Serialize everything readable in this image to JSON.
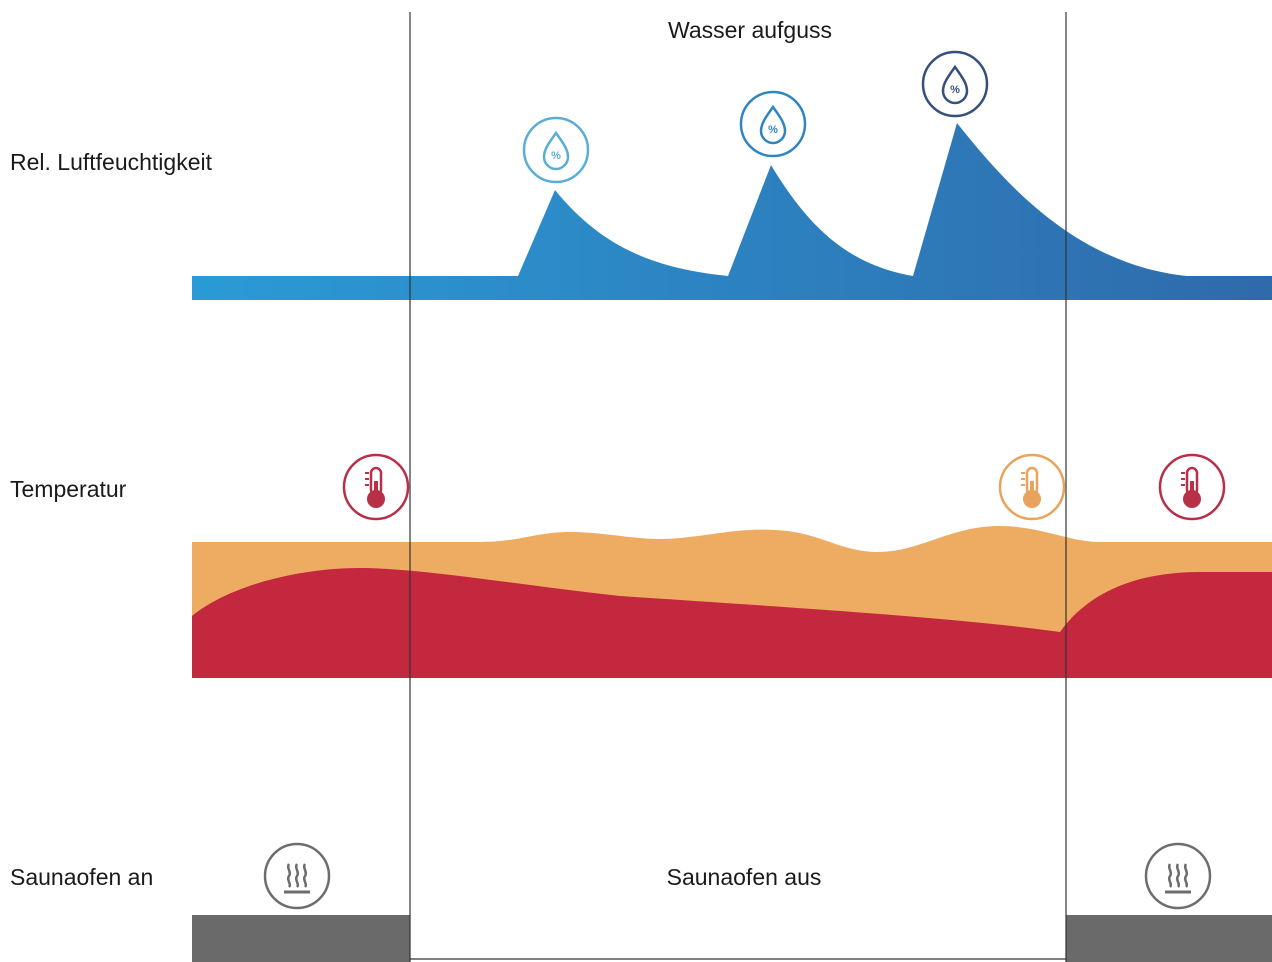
{
  "labels": {
    "top": "Wasser aufguss",
    "humidity": "Rel. Luftfeuchtigkeit",
    "temperature": "Temperatur",
    "heater_on": "Saunaofen an",
    "heater_off": "Saunaofen aus"
  },
  "icons": {
    "humidity": "humidity-drop-percent-icon",
    "temperature": "thermometer-icon",
    "heater": "sauna-heater-steam-icon"
  },
  "colors": {
    "humidity_blue": "#2b86c5",
    "temperature_orange": "#eeac62",
    "temperature_red": "#c3283f",
    "heater_gray": "#6a6a6a",
    "drop_light": "#5aaed3",
    "drop_mid": "#2e86c1",
    "drop_dark": "#35507a",
    "thermo_red": "#b83048",
    "thermo_orange": "#e9a35c",
    "heater_icon": "#6d6d6d",
    "divider": "#333333"
  }
}
